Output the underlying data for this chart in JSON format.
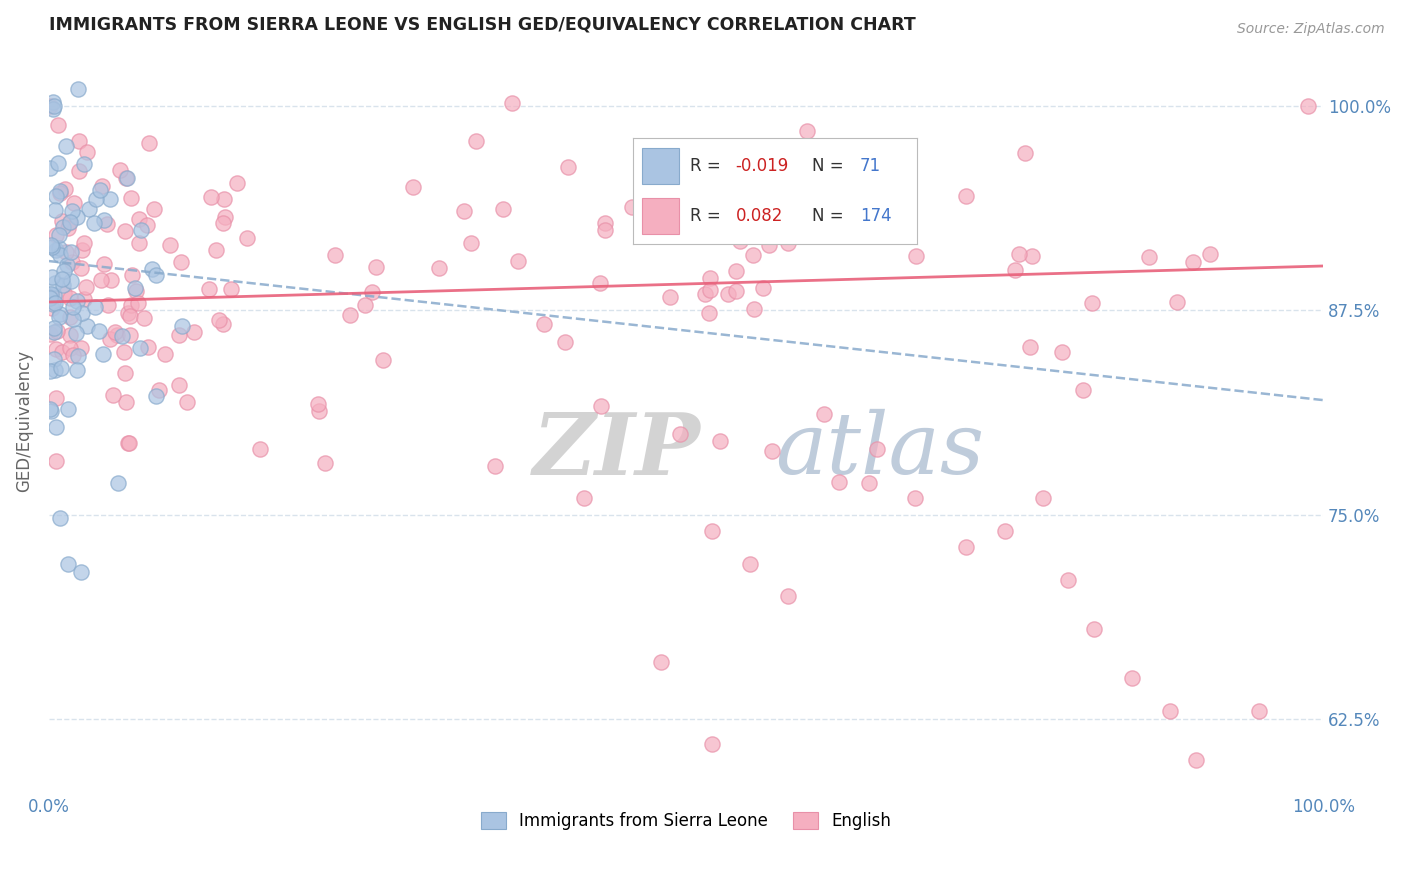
{
  "title": "IMMIGRANTS FROM SIERRA LEONE VS ENGLISH GED/EQUIVALENCY CORRELATION CHART",
  "source_text": "Source: ZipAtlas.com",
  "ylabel": "GED/Equivalency",
  "x_lim": [
    0.0,
    100.0
  ],
  "y_lim": [
    58.0,
    103.5
  ],
  "y_ticks": [
    62.5,
    75.0,
    87.5,
    100.0
  ],
  "blue_R": -0.019,
  "blue_N": 71,
  "pink_R": 0.082,
  "pink_N": 174,
  "blue_color": "#aac4e2",
  "pink_color": "#f5afc0",
  "blue_edge_color": "#88aacc",
  "pink_edge_color": "#e890a8",
  "blue_line_color": "#88aacc",
  "pink_line_color": "#e8607a",
  "grid_color": "#d0dde8",
  "watermark_zip_color": "#cccccc",
  "watermark_atlas_color": "#aabbd0",
  "title_color": "#222222",
  "tick_color": "#5588bb",
  "seed": 42
}
